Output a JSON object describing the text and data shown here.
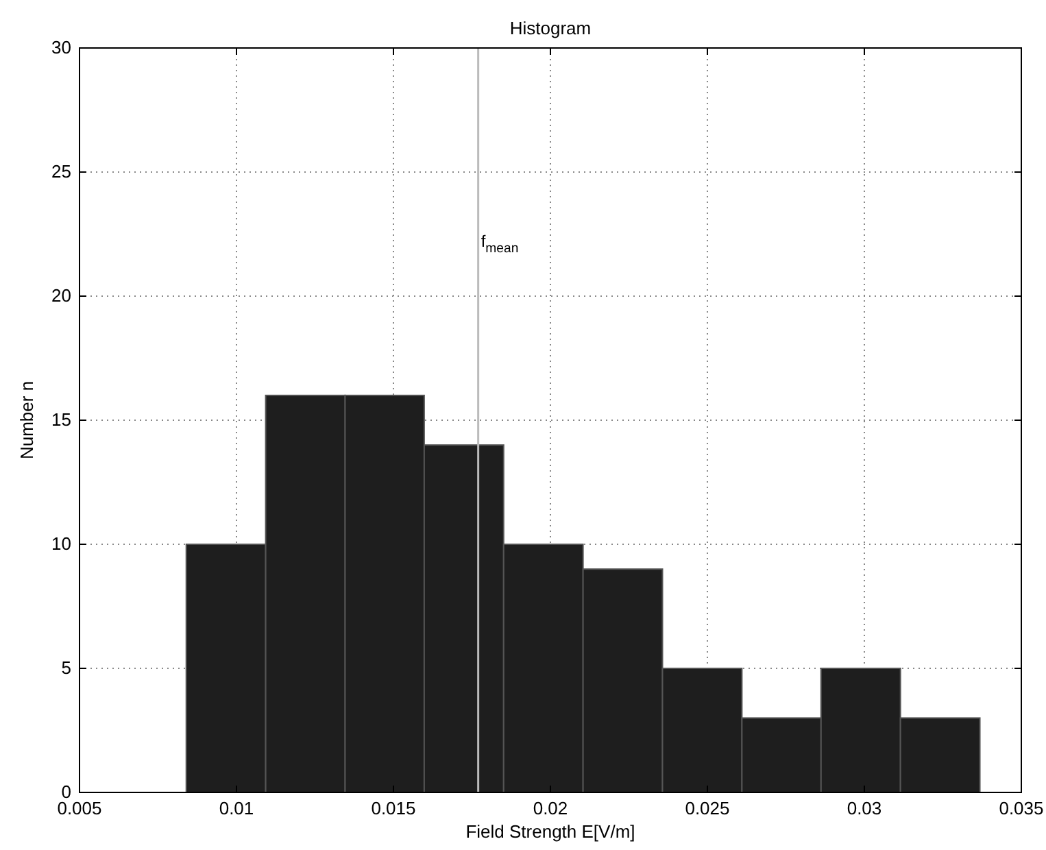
{
  "chart_data": {
    "type": "histogram",
    "title": "Histogram",
    "xlabel": "Field Strength E[V/m]",
    "ylabel": "Number n",
    "bins": [
      0.0084,
      0.01093,
      0.01346,
      0.01598,
      0.01851,
      0.02104,
      0.02357,
      0.0261,
      0.02862,
      0.03115,
      0.03368
    ],
    "values": [
      10,
      16,
      16,
      14,
      10,
      9,
      5,
      3,
      5,
      3
    ],
    "color": "#1e1e1e",
    "xlim": [
      0.005,
      0.035
    ],
    "xticks": [
      0.005,
      0.01,
      0.015,
      0.02,
      0.025,
      0.03,
      0.035
    ],
    "ylim": [
      0,
      30
    ],
    "yticks": [
      0,
      5,
      10,
      15,
      20,
      25,
      30
    ],
    "grid": true,
    "ref_lines": [
      {
        "axis": "x",
        "value": 0.0177,
        "label": "f$_{mean}$",
        "color": "#bbbbbb"
      }
    ]
  }
}
